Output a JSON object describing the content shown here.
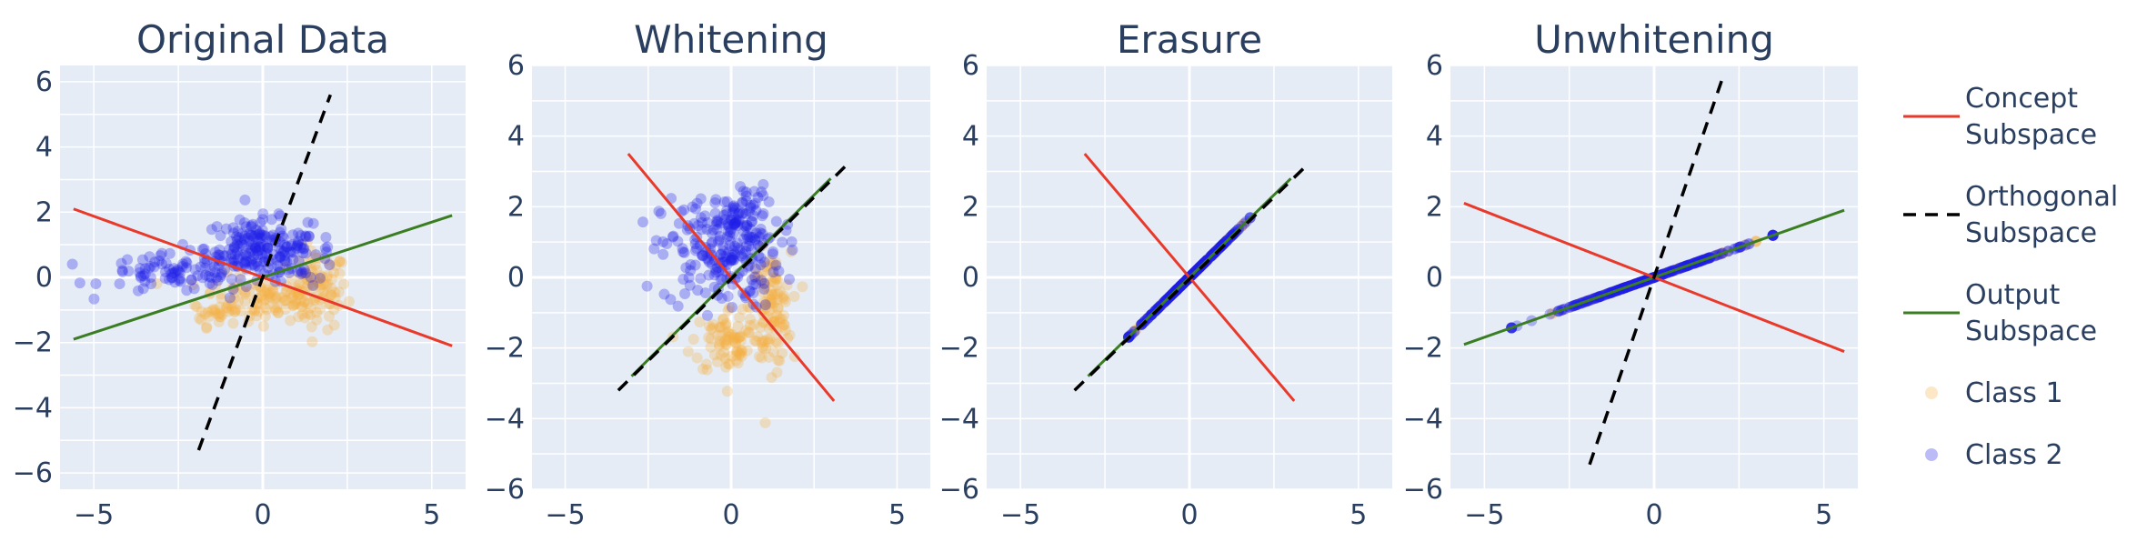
{
  "chart_data": [
    {
      "type": "scatter",
      "title": "Original Data",
      "xlabel": "",
      "ylabel": "",
      "xlim": [
        -6,
        6
      ],
      "ylim": [
        -6.5,
        6.5
      ],
      "xticks": [
        -5,
        0,
        5
      ],
      "yticks": [
        -6,
        -4,
        -2,
        0,
        2,
        4,
        6
      ],
      "grid": true,
      "lines": {
        "concept": [
          [
            -5.6,
            2.1
          ],
          [
            5.6,
            -2.1
          ]
        ],
        "orthogonal": [
          [
            -1.9,
            -5.3
          ],
          [
            2.0,
            5.6
          ]
        ],
        "output": [
          [
            -5.6,
            -1.9
          ],
          [
            5.6,
            1.9
          ]
        ]
      },
      "class1": {
        "shape": "blob",
        "clusters": [
          {
            "cx": 1.6,
            "cy": -0.4,
            "sx": 0.45,
            "sy": 0.6,
            "n": 90
          },
          {
            "cx": 0.0,
            "cy": -0.6,
            "sx": 0.9,
            "sy": 0.35,
            "n": 90
          },
          {
            "cx": -1.2,
            "cy": -1.1,
            "sx": 0.45,
            "sy": 0.2,
            "n": 30
          }
        ]
      },
      "class2": {
        "shape": "blob",
        "clusters": [
          {
            "cx": -0.2,
            "cy": 0.9,
            "sx": 0.75,
            "sy": 0.45,
            "n": 170
          },
          {
            "cx": -2.5,
            "cy": 0.1,
            "sx": 1.1,
            "sy": 0.3,
            "n": 90
          },
          {
            "cx": 1.2,
            "cy": 0.7,
            "sx": 0.5,
            "sy": 0.4,
            "n": 40
          }
        ]
      }
    },
    {
      "type": "scatter",
      "title": "Whitening",
      "xlabel": "",
      "ylabel": "",
      "xlim": [
        -6,
        6
      ],
      "ylim": [
        -6,
        6
      ],
      "xticks": [
        -5,
        0,
        5
      ],
      "yticks": [
        -6,
        -4,
        -2,
        0,
        2,
        4,
        6
      ],
      "grid": true,
      "lines": {
        "concept": [
          [
            -3.1,
            3.5
          ],
          [
            3.1,
            -3.5
          ]
        ],
        "orthogonal": [
          [
            -3.4,
            -3.2
          ],
          [
            3.5,
            3.2
          ]
        ],
        "output": [
          [
            -3.0,
            -2.8
          ],
          [
            3.0,
            2.8
          ]
        ]
      },
      "class1": {
        "shape": "blob",
        "clusters": [
          {
            "cx": 1.2,
            "cy": -0.9,
            "sx": 0.3,
            "sy": 0.8,
            "n": 100
          },
          {
            "cx": 0.0,
            "cy": -1.8,
            "sx": 0.6,
            "sy": 0.5,
            "n": 90
          }
        ]
      },
      "class2": {
        "shape": "blob",
        "clusters": [
          {
            "cx": -0.3,
            "cy": 0.7,
            "sx": 0.9,
            "sy": 0.8,
            "n": 200
          },
          {
            "cx": 0.3,
            "cy": 1.6,
            "sx": 0.4,
            "sy": 0.5,
            "n": 70
          }
        ]
      }
    },
    {
      "type": "scatter",
      "title": "Erasure",
      "xlabel": "",
      "ylabel": "",
      "xlim": [
        -6,
        6
      ],
      "ylim": [
        -6,
        6
      ],
      "xticks": [
        -5,
        0,
        5
      ],
      "yticks": [
        -6,
        -4,
        -2,
        0,
        2,
        4,
        6
      ],
      "grid": true,
      "lines": {
        "concept": [
          [
            -3.1,
            3.5
          ],
          [
            3.1,
            -3.5
          ]
        ],
        "orthogonal": [
          [
            -3.4,
            -3.2
          ],
          [
            3.5,
            3.2
          ]
        ],
        "output": [
          [
            -3.0,
            -2.8
          ],
          [
            3.0,
            2.8
          ]
        ]
      },
      "class1": {
        "shape": "line",
        "t_range": [
          -1.6,
          1.6
        ],
        "dir": [
          1,
          0.94
        ],
        "n": 100
      },
      "class2": {
        "shape": "line",
        "t_range": [
          -1.8,
          1.8
        ],
        "dir": [
          1,
          0.94
        ],
        "n": 280
      }
    },
    {
      "type": "scatter",
      "title": "Unwhitening",
      "xlabel": "",
      "ylabel": "",
      "xlim": [
        -6,
        6
      ],
      "ylim": [
        -6,
        6
      ],
      "xticks": [
        -5,
        0,
        5
      ],
      "yticks": [
        -6,
        -4,
        -2,
        0,
        2,
        4,
        6
      ],
      "grid": true,
      "lines": {
        "concept": [
          [
            -5.6,
            2.1
          ],
          [
            5.6,
            -2.1
          ]
        ],
        "orthogonal": [
          [
            -1.9,
            -5.3
          ],
          [
            2.0,
            5.6
          ]
        ],
        "output": [
          [
            -5.6,
            -1.9
          ],
          [
            5.6,
            1.9
          ]
        ]
      },
      "class1": {
        "shape": "line",
        "t_range": [
          -3.0,
          3.0
        ],
        "dir": [
          1,
          0.34
        ],
        "n": 100
      },
      "class2": {
        "shape": "line",
        "t_range": [
          -4.2,
          3.5
        ],
        "dir": [
          1,
          0.34
        ],
        "n": 280
      }
    }
  ],
  "legend": {
    "placement": "right",
    "items": [
      {
        "key": "concept",
        "lines": [
          "Concept",
          "Subspace"
        ],
        "symbol": "line",
        "color": "#e8392a"
      },
      {
        "key": "orthogonal",
        "lines": [
          "Orthogonal",
          "Subspace"
        ],
        "symbol": "dash",
        "color": "#000000"
      },
      {
        "key": "output",
        "lines": [
          "Output",
          "Subspace"
        ],
        "symbol": "line",
        "color": "#3a7d22"
      },
      {
        "key": "class1",
        "lines": [
          "Class 1"
        ],
        "symbol": "dot",
        "color": "#f5b041"
      },
      {
        "key": "class2",
        "lines": [
          "Class 2"
        ],
        "symbol": "dot",
        "color": "#1f1fe8"
      }
    ]
  },
  "colors": {
    "plot_bg": "#e5ecf6",
    "grid": "#ffffff",
    "text": "#2a3f5f",
    "concept": "#e8392a",
    "orthogonal": "#000000",
    "output": "#3a7d22",
    "class1": "#f5b041",
    "class2": "#1f1fe8"
  }
}
